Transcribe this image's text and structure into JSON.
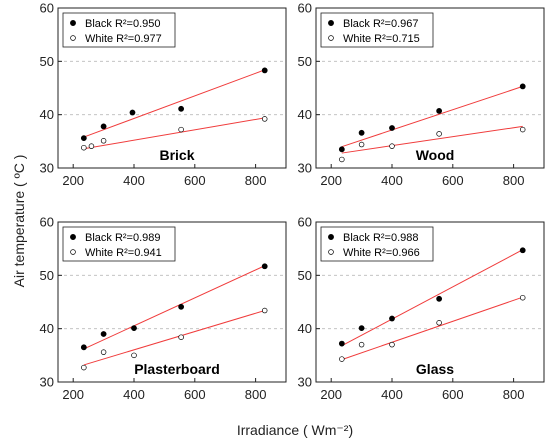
{
  "figure": {
    "ylabel": "Air temperature ( ºC )",
    "xlabel": "Irradiance ( Wm⁻²)"
  },
  "chart_data": [
    {
      "type": "scatter",
      "panel_label": "Brick",
      "xlim": [
        150,
        900
      ],
      "ylim": [
        30,
        60
      ],
      "xticks": [
        200,
        400,
        600,
        800
      ],
      "yticks": [
        30,
        40,
        50,
        60
      ],
      "grid": "dashed horizontal",
      "legend_position": "top-left",
      "series": [
        {
          "legend": "Black R²=0.950",
          "marker": "filled-circle",
          "x": [
            235,
            300,
            395,
            555,
            830
          ],
          "y": [
            35.6,
            37.8,
            40.4,
            41.1,
            48.3
          ]
        },
        {
          "legend": "White R²=0.977",
          "marker": "open-circle",
          "x": [
            235,
            260,
            300,
            555,
            830
          ],
          "y": [
            33.8,
            34.1,
            35.1,
            37.2,
            39.2
          ]
        }
      ],
      "fit_lines": [
        {
          "x": [
            235,
            830
          ],
          "y": [
            35.8,
            48.4
          ]
        },
        {
          "x": [
            235,
            830
          ],
          "y": [
            33.6,
            39.4
          ]
        }
      ]
    },
    {
      "type": "scatter",
      "panel_label": "Wood",
      "xlim": [
        150,
        900
      ],
      "ylim": [
        30,
        60
      ],
      "xticks": [
        200,
        400,
        600,
        800
      ],
      "yticks": [
        30,
        40,
        50,
        60
      ],
      "grid": "dashed horizontal",
      "legend_position": "top-left",
      "series": [
        {
          "legend": "Black R²=0.967",
          "marker": "filled-circle",
          "x": [
            235,
            300,
            400,
            555,
            830
          ],
          "y": [
            33.5,
            36.6,
            37.5,
            40.7,
            45.3
          ]
        },
        {
          "legend": "White R²=0.715",
          "marker": "open-circle",
          "x": [
            235,
            300,
            400,
            555,
            830
          ],
          "y": [
            31.6,
            34.4,
            34.1,
            36.4,
            37.2
          ]
        }
      ],
      "fit_lines": [
        {
          "x": [
            235,
            830
          ],
          "y": [
            34.0,
            45.3
          ]
        },
        {
          "x": [
            235,
            830
          ],
          "y": [
            32.8,
            37.8
          ]
        }
      ]
    },
    {
      "type": "scatter",
      "panel_label": "Plasterboard",
      "xlim": [
        150,
        900
      ],
      "ylim": [
        30,
        60
      ],
      "xticks": [
        200,
        400,
        600,
        800
      ],
      "yticks": [
        30,
        40,
        50,
        60
      ],
      "grid": "dashed horizontal",
      "legend_position": "top-left",
      "series": [
        {
          "legend": "Black R²=0.989",
          "marker": "filled-circle",
          "x": [
            235,
            300,
            400,
            555,
            830
          ],
          "y": [
            36.5,
            39.0,
            40.1,
            44.1,
            51.7
          ]
        },
        {
          "legend": "White R²=0.941",
          "marker": "open-circle",
          "x": [
            235,
            300,
            400,
            555,
            830
          ],
          "y": [
            32.7,
            35.6,
            35.0,
            38.4,
            43.4
          ]
        }
      ],
      "fit_lines": [
        {
          "x": [
            235,
            830
          ],
          "y": [
            36.2,
            51.8
          ]
        },
        {
          "x": [
            235,
            830
          ],
          "y": [
            33.2,
            43.4
          ]
        }
      ]
    },
    {
      "type": "scatter",
      "panel_label": "Glass",
      "xlim": [
        150,
        900
      ],
      "ylim": [
        30,
        60
      ],
      "xticks": [
        200,
        400,
        600,
        800
      ],
      "yticks": [
        30,
        40,
        50,
        60
      ],
      "grid": "dashed horizontal",
      "legend_position": "top-left",
      "series": [
        {
          "legend": "Black R²=0.988",
          "marker": "filled-circle",
          "x": [
            235,
            300,
            400,
            555,
            830
          ],
          "y": [
            37.2,
            40.1,
            41.9,
            45.6,
            54.7
          ]
        },
        {
          "legend": "White R²=0.966",
          "marker": "open-circle",
          "x": [
            235,
            300,
            400,
            555,
            830
          ],
          "y": [
            34.3,
            37.0,
            37.0,
            41.1,
            45.8
          ]
        }
      ],
      "fit_lines": [
        {
          "x": [
            235,
            830
          ],
          "y": [
            36.8,
            54.8
          ]
        },
        {
          "x": [
            235,
            830
          ],
          "y": [
            34.2,
            45.9
          ]
        }
      ]
    }
  ],
  "colors": {
    "fit_line": "#f03c3c",
    "axis": "#222222",
    "grid": "#bbbbbb",
    "marker": "#000000"
  }
}
